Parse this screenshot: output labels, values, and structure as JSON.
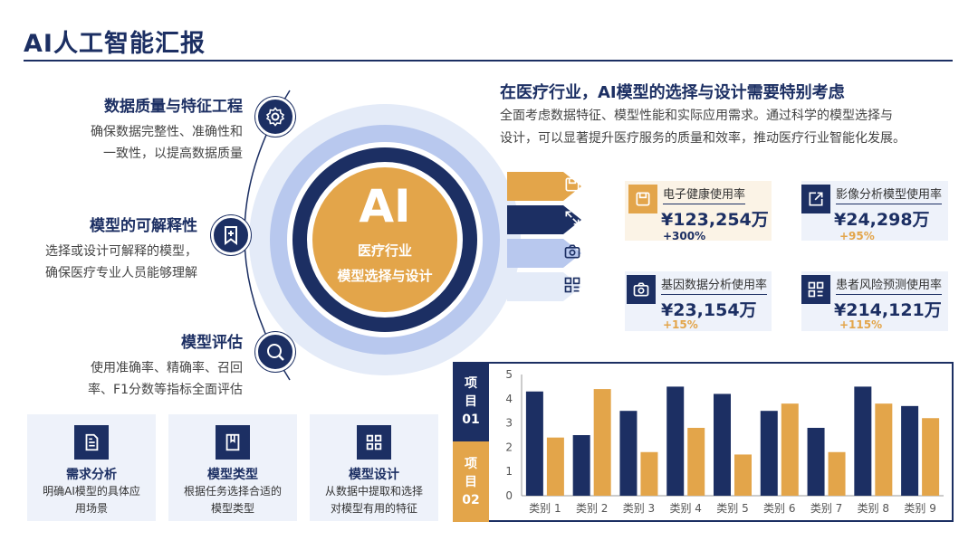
{
  "title": "AI人工智能汇报",
  "left_items": [
    {
      "title": "数据质量与特征工程",
      "desc": [
        "确保数据完整性、准确性和",
        "一致性，以提高数据质量"
      ],
      "icon": "gear-icon"
    },
    {
      "title": "模型的可解释性",
      "desc": [
        "选择或设计可解释的模型，",
        "确保医疗专业人员能够理解"
      ],
      "icon": "bookmark-plus-icon"
    },
    {
      "title": "模型评估",
      "desc": [
        "使用准确率、精确率、召回",
        "率、F1分数等指标全面评估"
      ],
      "icon": "search-icon"
    }
  ],
  "hub": {
    "main": "AI",
    "line1": "医疗行业",
    "line2": "模型选择与设计"
  },
  "arrow_icons": [
    "save-icon",
    "expand-icon",
    "camera-icon",
    "grid-icon"
  ],
  "right_heading": "在医疗行业，AI模型的选择与设计需要特别考虑",
  "right_desc": [
    "全面考虑数据特征、模型性能和实际应用需求。通过科学的模型选择与",
    "设计，可以显著提升医疗服务的质量和效率，推动医疗行业智能化发展。"
  ],
  "stats": [
    {
      "label": "电子健康使用率",
      "value": "¥123,254万",
      "change": "+300%",
      "icon": "save-icon"
    },
    {
      "label": "影像分析模型使用率",
      "value": "¥24,298万",
      "change": "+95%",
      "icon": "external-link-icon"
    },
    {
      "label": "基因数据分析使用率",
      "value": "¥23,154万",
      "change": "+15%",
      "icon": "camera-icon"
    },
    {
      "label": "患者风险预测使用率",
      "value": "¥214,121万",
      "change": "+115%",
      "icon": "grid-icon"
    }
  ],
  "cards": [
    {
      "title": "需求分析",
      "desc": [
        "明确AI模型的具体应",
        "用场景"
      ],
      "icon": "document-icon"
    },
    {
      "title": "模型类型",
      "desc": [
        "根据任务选择合适的",
        "模型类型"
      ],
      "icon": "bookmark-icon"
    },
    {
      "title": "模型设计",
      "desc": [
        "从数据中提取和选择",
        "对模型有用的特征"
      ],
      "icon": "grid-icon"
    }
  ],
  "project_tabs": [
    {
      "lines": [
        "项",
        "目",
        "01"
      ]
    },
    {
      "lines": [
        "项",
        "目",
        "02"
      ]
    }
  ],
  "colors": {
    "navy": "#1c2f63",
    "gold": "#e3a54a",
    "light_blue": "#b8c8ee",
    "pale_blue": "#e4ebf8"
  },
  "chart_data": {
    "type": "bar",
    "categories": [
      "类别 1",
      "类别 2",
      "类别 3",
      "类别 4",
      "类别 5",
      "类别 6",
      "类别 7",
      "类别 8",
      "类别 9"
    ],
    "series": [
      {
        "values": [
          4.3,
          2.5,
          3.5,
          4.5,
          4.2,
          3.5,
          2.8,
          4.5,
          3.7
        ],
        "color": "#1c2f63"
      },
      {
        "values": [
          2.4,
          4.4,
          1.8,
          2.8,
          1.7,
          3.8,
          1.8,
          3.8,
          3.2
        ],
        "color": "#e3a54a"
      }
    ],
    "yticks": [
      "0",
      "1",
      "2",
      "3",
      "4",
      "5"
    ],
    "ylim": [
      0,
      5
    ],
    "grid": false
  }
}
